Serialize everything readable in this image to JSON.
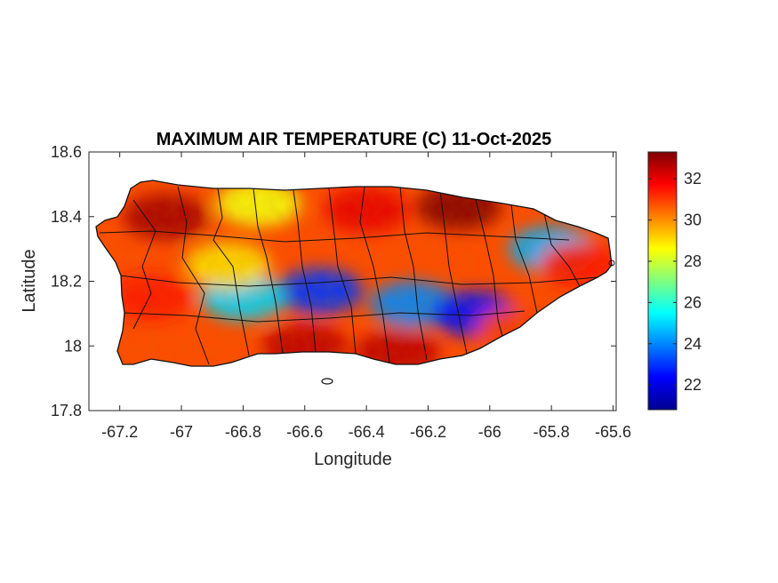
{
  "chart_data": {
    "type": "heatmap",
    "title": "MAXIMUM AIR TEMPERATURE (C) 11-Oct-2025",
    "xlabel": "Longitude",
    "ylabel": "Latitude",
    "xlim": [
      -67.3,
      -65.59
    ],
    "ylim": [
      17.8,
      18.6
    ],
    "xticks": [
      -67.2,
      -67,
      -66.8,
      -66.6,
      -66.4,
      -66.2,
      -66,
      -65.8,
      -65.6
    ],
    "xtick_labels": [
      "-67.2",
      "-67",
      "-66.8",
      "-66.6",
      "-66.4",
      "-66.2",
      "-66",
      "-65.8",
      "-65.6"
    ],
    "yticks": [
      17.8,
      18,
      18.2,
      18.4,
      18.6
    ],
    "ytick_labels": [
      "17.8",
      "18",
      "18.2",
      "18.4",
      "18.6"
    ],
    "colorbar": {
      "colormap": "jet",
      "range": [
        20.8,
        33.3
      ],
      "ticks": [
        22,
        24,
        26,
        28,
        30,
        32
      ],
      "tick_labels": [
        "22",
        "24",
        "26",
        "28",
        "30",
        "32"
      ]
    },
    "grid": false,
    "regions": [
      {
        "lon": -67.05,
        "lat": 18.4,
        "value": 32.8
      },
      {
        "lon": -66.75,
        "lat": 18.44,
        "value": 28.5
      },
      {
        "lon": -66.4,
        "lat": 18.42,
        "value": 32.0
      },
      {
        "lon": -66.1,
        "lat": 18.43,
        "value": 33.2
      },
      {
        "lon": -65.8,
        "lat": 18.3,
        "value": 24.5
      },
      {
        "lon": -65.7,
        "lat": 18.25,
        "value": 31.5
      },
      {
        "lon": -66.55,
        "lat": 18.17,
        "value": 23.0
      },
      {
        "lon": -66.8,
        "lat": 18.15,
        "value": 25.0
      },
      {
        "lon": -66.25,
        "lat": 18.13,
        "value": 24.0
      },
      {
        "lon": -66.05,
        "lat": 18.1,
        "value": 22.5
      },
      {
        "lon": -66.85,
        "lat": 18.25,
        "value": 29.0
      },
      {
        "lon": -67.1,
        "lat": 18.15,
        "value": 31.5
      },
      {
        "lon": -66.6,
        "lat": 18.0,
        "value": 32.5
      },
      {
        "lon": -66.3,
        "lat": 17.98,
        "value": 32.5
      },
      {
        "lon": -65.9,
        "lat": 18.05,
        "value": 31.0
      }
    ]
  }
}
